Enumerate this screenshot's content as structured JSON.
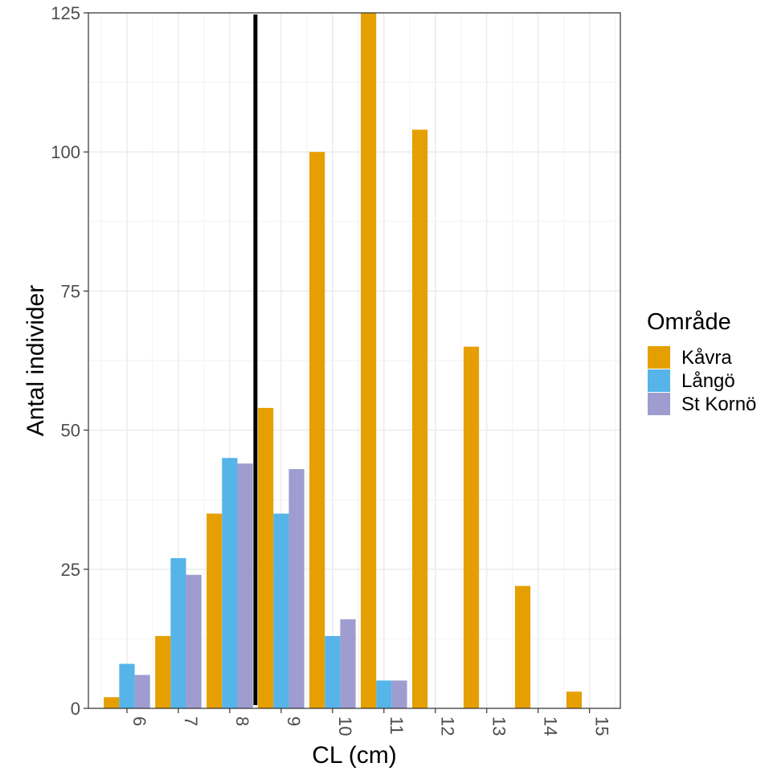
{
  "chart_data": {
    "type": "bar",
    "title": "",
    "xlabel": "CL (cm)",
    "ylabel": "Antal individer",
    "categories": [
      "6",
      "7",
      "8",
      "9",
      "10",
      "11",
      "12",
      "13",
      "14",
      "15"
    ],
    "x_values": [
      6,
      7,
      8,
      9,
      10,
      11,
      12,
      13,
      14,
      15
    ],
    "x_tick_rotation": "vertical",
    "y_ticks": [
      0,
      25,
      50,
      75,
      100,
      125
    ],
    "ylim": [
      0,
      125
    ],
    "grid": true,
    "legend": {
      "title": "Område",
      "position": "right"
    },
    "series": [
      {
        "name": "Kåvra",
        "color": "#E69F00",
        "values": [
          2,
          13,
          35,
          54,
          100,
          125,
          104,
          65,
          22,
          3
        ]
      },
      {
        "name": "Långö",
        "color": "#56B4E9",
        "values": [
          8,
          27,
          45,
          35,
          13,
          5,
          0,
          0,
          0,
          0
        ]
      },
      {
        "name": "St Kornö",
        "color": "#9F9CD0",
        "values": [
          6,
          24,
          44,
          43,
          16,
          5,
          0,
          0,
          0,
          0
        ]
      }
    ],
    "reference_line": {
      "orientation": "vertical",
      "x": 8.5,
      "color": "#000000"
    }
  }
}
